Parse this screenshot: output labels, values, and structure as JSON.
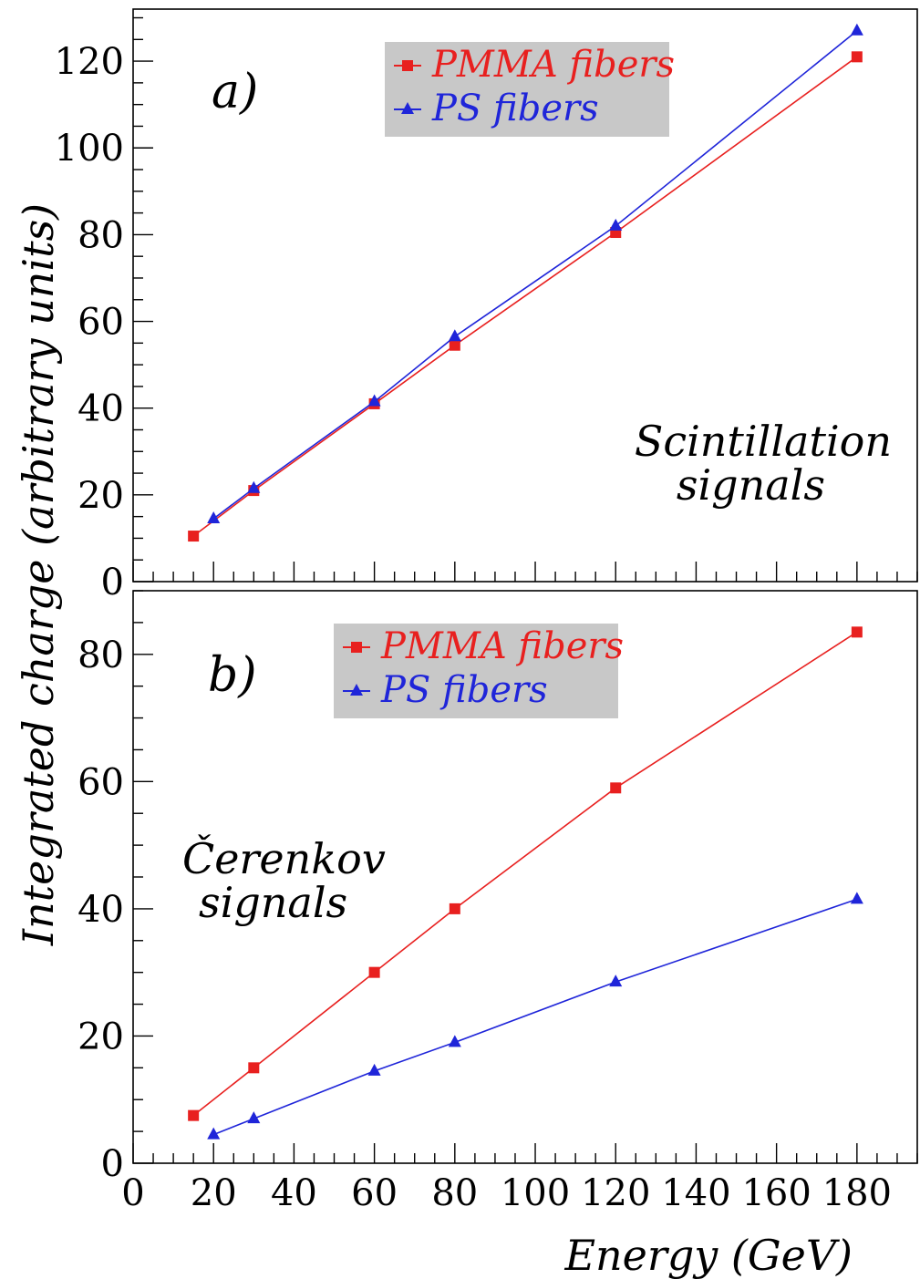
{
  "figure": {
    "ylabel": "Integrated charge (arbitrary units)",
    "xlabel": "Energy (GeV)"
  },
  "chart_data": [
    {
      "type": "line",
      "panel_label": "a)",
      "annotation": [
        "Scintillation",
        "signals"
      ],
      "xlim": [
        0,
        195
      ],
      "ylim": [
        0,
        132
      ],
      "xticks": [
        0,
        20,
        40,
        60,
        80,
        100,
        120,
        140,
        160,
        180
      ],
      "xtick_labels_shown": false,
      "yticks": [
        0,
        20,
        40,
        60,
        80,
        100,
        120
      ],
      "legend_position": "top-center",
      "series": [
        {
          "name": "PMMA fibers",
          "color": "#e8201f",
          "marker": "square",
          "x": [
            15,
            30,
            60,
            80,
            120,
            180
          ],
          "y": [
            10.5,
            21,
            41,
            54.5,
            80.5,
            121
          ]
        },
        {
          "name": "PS fibers",
          "color": "#1f25d9",
          "marker": "triangle",
          "x": [
            20,
            30,
            60,
            80,
            120,
            180
          ],
          "y": [
            14.5,
            21.5,
            41.5,
            56.5,
            82,
            127
          ]
        }
      ]
    },
    {
      "type": "line",
      "panel_label": "b)",
      "annotation": [
        "Čerenkov",
        "signals"
      ],
      "xlim": [
        0,
        195
      ],
      "ylim": [
        0,
        90
      ],
      "xticks": [
        0,
        20,
        40,
        60,
        80,
        100,
        120,
        140,
        160,
        180
      ],
      "xtick_labels_shown": true,
      "yticks": [
        0,
        20,
        40,
        60,
        80
      ],
      "legend_position": "top-center",
      "series": [
        {
          "name": "PMMA fibers",
          "color": "#e8201f",
          "marker": "square",
          "x": [
            15,
            30,
            60,
            80,
            120,
            180
          ],
          "y": [
            7.5,
            15,
            30,
            40,
            59,
            83.5
          ]
        },
        {
          "name": "PS fibers",
          "color": "#1f25d9",
          "marker": "triangle",
          "x": [
            20,
            30,
            60,
            80,
            120,
            180
          ],
          "y": [
            4.5,
            7,
            14.5,
            19,
            28.5,
            41.5
          ]
        }
      ]
    }
  ]
}
